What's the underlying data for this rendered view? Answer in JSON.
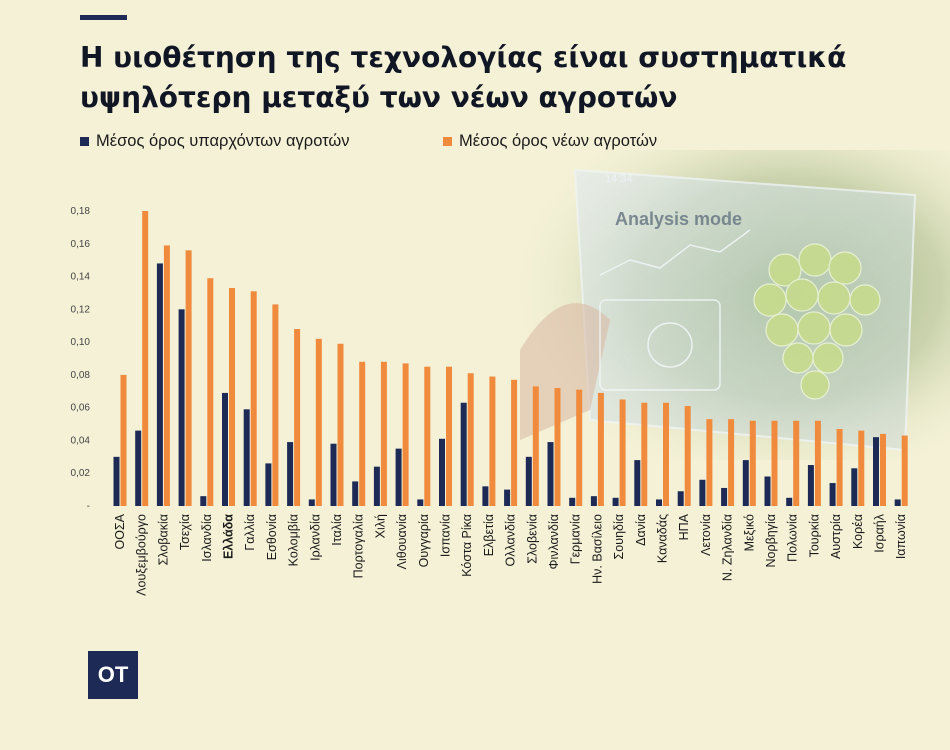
{
  "title_line1": "Η υιοθέτηση της τεχνολογίας είναι συστηματικά",
  "title_line2": "υψηλότερη μεταξύ των νέων αγροτών",
  "legend": {
    "series1": "Μέσος όρος υπαρχόντων αγροτών",
    "series2": "Μέσος όρος νέων αγροτών"
  },
  "logo_text": "OT",
  "background_overlay": {
    "screen_time": "14:34",
    "screen_mode": "Analysis mode"
  },
  "colors": {
    "background": "#f4f1d6",
    "series1": "#1c2a55",
    "series2": "#f08a3c",
    "text": "#101624"
  },
  "chart_data": {
    "type": "bar",
    "ylim": [
      0,
      0.18
    ],
    "yticks": [
      "-",
      "0,02",
      "0,04",
      "0,06",
      "0,08",
      "0,10",
      "0,12",
      "0,14",
      "0,16",
      "0,18"
    ],
    "highlight_category": "Ελλάδα",
    "categories": [
      "ΟΟΣΑ",
      "Λουξεμβούργο",
      "Σλοβακία",
      "Τσεχία",
      "Ισλανδία",
      "Ελλάδα",
      "Γαλλία",
      "Εσθονία",
      "Κολομβία",
      "Ιρλανδία",
      "Ιταλία",
      "Πορτογαλία",
      "Χιλή",
      "Λιθουανία",
      "Ουγγαρία",
      "Ισπανία",
      "Κόστα Ρίκα",
      "Ελβετία",
      "Ολλανδία",
      "Σλοβενία",
      "Φινλανδία",
      "Γερμανία",
      "Ην. Βασίλειο",
      "Σουηδία",
      "Δανία",
      "Καναδάς",
      "ΗΠΑ",
      "Λετονία",
      "Ν. Ζηλανδία",
      "Μεξικό",
      "Νορβηγία",
      "Πολωνία",
      "Τουρκία",
      "Αυστρία",
      "Κορέα",
      "Ισραήλ",
      "Ιαπωνία"
    ],
    "series": [
      {
        "name": "Μέσος όρος υπαρχόντων αγροτών",
        "values": [
          0.03,
          0.046,
          0.148,
          0.12,
          0.006,
          0.069,
          0.059,
          0.026,
          0.039,
          0.004,
          0.038,
          0.015,
          0.024,
          0.035,
          0.004,
          0.041,
          0.063,
          0.012,
          0.01,
          0.03,
          0.039,
          0.005,
          0.006,
          0.005,
          0.028,
          0.004,
          0.009,
          0.016,
          0.011,
          0.028,
          0.018,
          0.005,
          0.025,
          0.014,
          0.023,
          0.042,
          0.004
        ]
      },
      {
        "name": "Μέσος όρος νέων αγροτών",
        "values": [
          0.08,
          0.18,
          0.159,
          0.156,
          0.139,
          0.133,
          0.131,
          0.123,
          0.108,
          0.102,
          0.099,
          0.088,
          0.088,
          0.087,
          0.085,
          0.085,
          0.081,
          0.079,
          0.077,
          0.073,
          0.072,
          0.071,
          0.069,
          0.065,
          0.063,
          0.063,
          0.061,
          0.053,
          0.053,
          0.052,
          0.052,
          0.052,
          0.052,
          0.047,
          0.046,
          0.044,
          0.043
        ]
      }
    ]
  }
}
